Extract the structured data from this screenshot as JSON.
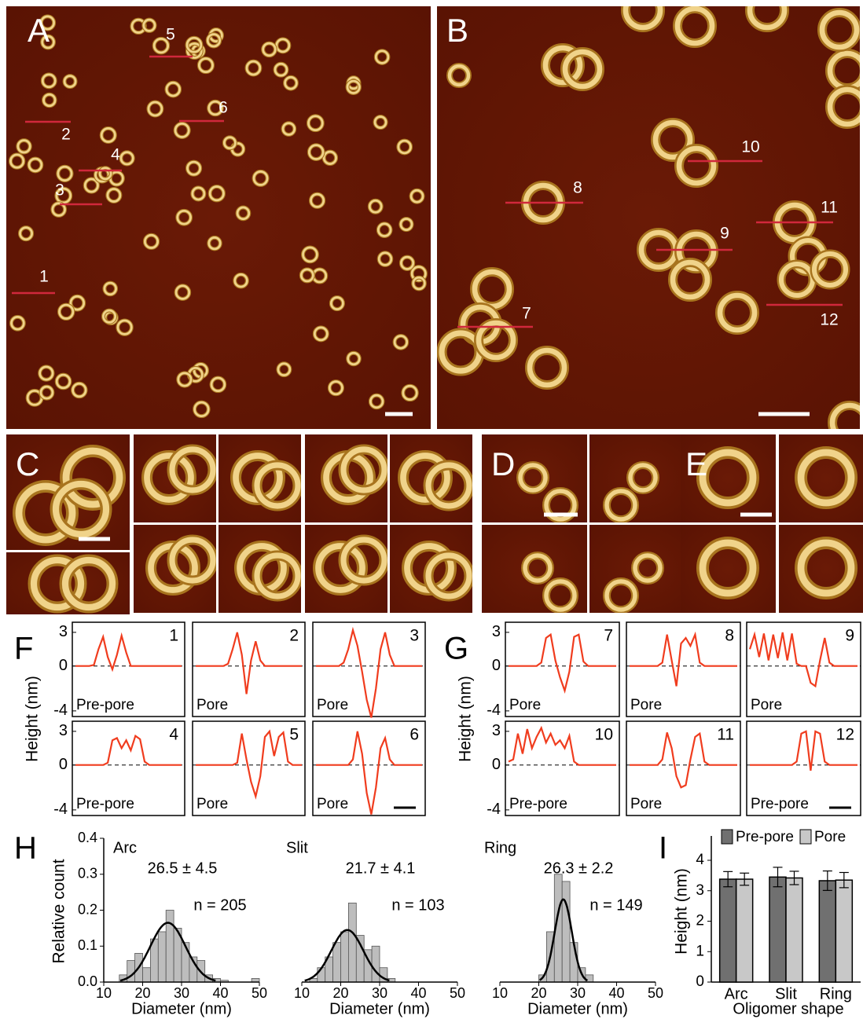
{
  "images": {
    "A": {
      "label": "A",
      "markers": [
        "5",
        "2",
        "6",
        "4",
        "3",
        "1"
      ]
    },
    "B": {
      "label": "B",
      "markers": [
        "10",
        "8",
        "11",
        "9",
        "7",
        "12"
      ]
    },
    "C": {
      "label": "C"
    },
    "D": {
      "label": "D"
    },
    "E": {
      "label": "E"
    }
  },
  "chart_data": [
    {
      "type": "profiles",
      "label": "F",
      "y_label": "Height (nm)",
      "ylim": [
        -4.5,
        3.9
      ],
      "yticks": [
        -4,
        0,
        3
      ],
      "color": "#f03c1e",
      "plots": [
        {
          "number": "1",
          "state": "Pre-pore",
          "values": [
            0,
            0,
            0,
            0,
            0.1,
            1.5,
            2.6,
            0.8,
            -0.3,
            1.0,
            2.7,
            1.2,
            0,
            0,
            0,
            0,
            0,
            0,
            0,
            0,
            0,
            0,
            0,
            0
          ]
        },
        {
          "number": "2",
          "state": "Pore",
          "values": [
            0,
            0,
            0,
            0,
            0,
            0,
            0,
            0.2,
            1.5,
            3.0,
            1.0,
            -2.5,
            0.5,
            2.2,
            0.5,
            0,
            0,
            0,
            0,
            0,
            0,
            0,
            0,
            0
          ]
        },
        {
          "number": "3",
          "state": "Pore",
          "values": [
            0,
            0,
            0,
            0,
            0,
            0,
            0.3,
            1.5,
            3.2,
            1.8,
            -0.5,
            -3.0,
            -4.6,
            -2.0,
            1.5,
            3.0,
            1.0,
            0,
            0,
            0,
            0,
            0,
            0,
            0
          ]
        },
        {
          "number": "4",
          "state": "Pre-pore",
          "values": [
            0,
            0,
            0,
            0,
            0,
            0,
            0,
            0.2,
            2.2,
            2.4,
            1.5,
            2.2,
            1.3,
            2.6,
            2.3,
            0.3,
            0,
            0,
            0,
            0,
            0,
            0,
            0,
            0
          ]
        },
        {
          "number": "5",
          "state": "Pore",
          "values": [
            0,
            0,
            0,
            0,
            0,
            0,
            0,
            0,
            0,
            0.2,
            2.8,
            0.5,
            -1.5,
            -2.8,
            -1.0,
            2.5,
            3.0,
            0.8,
            2.5,
            2.9,
            0.3,
            0,
            0,
            0
          ]
        },
        {
          "number": "6",
          "state": "Pore",
          "values": [
            0,
            0,
            0,
            0,
            0,
            0,
            0,
            0,
            0.5,
            3.0,
            1.0,
            -2.5,
            -4.4,
            -2.0,
            1.5,
            2.4,
            0.5,
            0,
            0,
            0,
            0,
            0,
            0,
            0
          ]
        }
      ]
    },
    {
      "type": "profiles",
      "label": "G",
      "y_label": "Height (nm)",
      "ylim": [
        -4.5,
        3.9
      ],
      "yticks": [
        -4,
        0,
        3
      ],
      "color": "#f03c1e",
      "plots": [
        {
          "number": "7",
          "state": "Pore",
          "values": [
            0,
            0,
            0,
            0,
            0,
            0,
            0,
            0.3,
            2.5,
            2.8,
            0.5,
            -1.0,
            -2.2,
            -0.5,
            2.6,
            2.8,
            0.4,
            0,
            0,
            0,
            0,
            0,
            0,
            0
          ]
        },
        {
          "number": "8",
          "state": "Pore",
          "values": [
            0,
            0,
            0,
            0,
            0,
            0,
            0,
            0.3,
            2.8,
            0.5,
            -1.8,
            2.0,
            2.5,
            1.8,
            2.8,
            0.3,
            0,
            0,
            0,
            0,
            0,
            0,
            0,
            0
          ]
        },
        {
          "number": "9",
          "state": "Pore",
          "values": [
            1.5,
            2.8,
            0.8,
            2.9,
            0.5,
            2.8,
            0.7,
            3.0,
            0.5,
            2.9,
            0.2,
            0,
            0,
            -1.5,
            -1.8,
            0.5,
            2.5,
            0.3,
            0,
            0,
            0,
            0,
            0,
            0
          ]
        },
        {
          "number": "10",
          "state": "Pre-pore",
          "values": [
            0.3,
            0.5,
            2.8,
            1.0,
            3.2,
            1.5,
            2.5,
            3.3,
            2.0,
            2.8,
            1.8,
            2.2,
            1.5,
            2.6,
            0.3,
            0,
            0,
            0,
            0,
            0,
            0,
            0,
            0,
            0
          ]
        },
        {
          "number": "11",
          "state": "Pore",
          "values": [
            0,
            0,
            0,
            0,
            0,
            0,
            0,
            0.5,
            2.9,
            1.5,
            -1.0,
            -2.0,
            -1.8,
            0.5,
            2.5,
            2.8,
            0.3,
            0,
            0,
            0,
            0,
            0,
            0,
            0
          ]
        },
        {
          "number": "12",
          "state": "Pre-pore",
          "values": [
            0,
            0,
            0,
            0,
            0,
            0,
            0,
            0,
            0,
            0,
            0.3,
            2.8,
            3.0,
            -0.5,
            3.0,
            2.8,
            0.3,
            0,
            0,
            0,
            0,
            0,
            0,
            0
          ]
        }
      ]
    },
    {
      "type": "histogram",
      "label": "H",
      "y_label": "Relative count",
      "x_label": "Diameter (nm)",
      "ylim": [
        0,
        0.4
      ],
      "yticks": [
        {
          "value": 0,
          "label": "0.0"
        },
        0.1,
        0.2,
        0.3,
        0.4
      ],
      "xlim": [
        10,
        50
      ],
      "xticks": [
        10,
        20,
        30,
        40,
        50
      ],
      "color": "#bdbdbd",
      "bins": [
        10,
        12,
        14,
        16,
        18,
        20,
        22,
        24,
        26,
        28,
        30,
        32,
        34,
        36,
        38,
        40,
        42,
        44,
        46,
        48,
        50
      ],
      "panels": [
        {
          "name": "Arc",
          "stats": "26.5 ± 4.5",
          "n": "n = 205",
          "fit": {
            "mean": 26.5,
            "sd": 4.5,
            "peak": 0.165
          },
          "values": [
            0,
            0,
            0.02,
            0.06,
            0.08,
            0.04,
            0.12,
            0.14,
            0.2,
            0.15,
            0.11,
            0.07,
            0.06,
            0.02,
            0.01,
            0.005,
            0,
            0,
            0,
            0.01
          ]
        },
        {
          "name": "Slit",
          "stats": "21.7 ± 4.1",
          "n": "n = 103",
          "fit": {
            "mean": 21.7,
            "sd": 4.1,
            "peak": 0.145
          },
          "values": [
            0,
            0.01,
            0.04,
            0.07,
            0.11,
            0.14,
            0.22,
            0.13,
            0.09,
            0.1,
            0.04,
            0.01,
            0,
            0,
            0,
            0,
            0,
            0,
            0,
            0
          ]
        },
        {
          "name": "Ring",
          "stats": "26.3 ± 2.2",
          "n": "n = 149",
          "fit": {
            "mean": 26.3,
            "sd": 2.2,
            "peak": 0.23
          },
          "values": [
            0,
            0,
            0,
            0,
            0,
            0.02,
            0.14,
            0.3,
            0.28,
            0.11,
            0.04,
            0.02,
            0,
            0,
            0,
            0,
            0,
            0,
            0,
            0
          ]
        }
      ]
    },
    {
      "type": "bar",
      "label": "I",
      "y_label": "Height (nm)",
      "x_label": "Oligomer shape",
      "categories": [
        "Arc",
        "Slit",
        "Ring"
      ],
      "ylim": [
        0,
        4.8
      ],
      "yticks": [
        0,
        1,
        2,
        3,
        4
      ],
      "series": [
        {
          "name": "Pre-pore",
          "color": "#707070",
          "values": [
            3.38,
            3.45,
            3.33
          ],
          "errors": [
            0.25,
            0.32,
            0.32
          ]
        },
        {
          "name": "Pore",
          "color": "#c8c8c8",
          "values": [
            3.38,
            3.42,
            3.35
          ],
          "errors": [
            0.2,
            0.22,
            0.25
          ]
        }
      ]
    }
  ]
}
